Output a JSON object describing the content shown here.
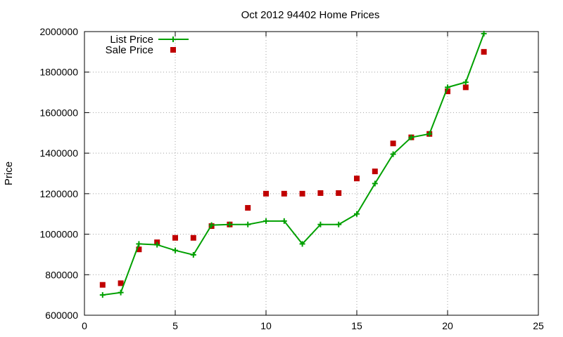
{
  "chart_data": {
    "type": "line",
    "title": "Oct 2012 94402 Home Prices",
    "xlabel": "",
    "ylabel": "Price",
    "xlim": [
      0,
      25
    ],
    "ylim": [
      600000,
      2000000
    ],
    "xticks": [
      0,
      5,
      10,
      15,
      20,
      25
    ],
    "yticks": [
      600000,
      800000,
      1000000,
      1200000,
      1400000,
      1600000,
      1800000,
      2000000
    ],
    "xtick_labels": [
      "0",
      "5",
      "10",
      "15",
      "20",
      "25"
    ],
    "ytick_labels": [
      "600000",
      "800000",
      "1000000",
      "1200000",
      "1400000",
      "1600000",
      "1800000",
      "2000000"
    ],
    "grid": true,
    "legend_position": "top-left",
    "series": [
      {
        "name": "List Price",
        "style": "linespoints",
        "marker": "plus",
        "color": "#00a000",
        "x": [
          1,
          2,
          3,
          4,
          5,
          6,
          7,
          8,
          9,
          10,
          11,
          12,
          13,
          14,
          15,
          16,
          17,
          18,
          19,
          20,
          21,
          22
        ],
        "values": [
          700000,
          712000,
          952000,
          948000,
          920000,
          898000,
          1045000,
          1048000,
          1048000,
          1065000,
          1065000,
          952000,
          1048000,
          1048000,
          1100000,
          1250000,
          1395000,
          1478000,
          1495000,
          1725000,
          1750000,
          1990000
        ]
      },
      {
        "name": "Sale Price",
        "style": "points",
        "marker": "square",
        "color": "#c00000",
        "x": [
          1,
          2,
          3,
          4,
          5,
          6,
          7,
          8,
          9,
          10,
          11,
          12,
          13,
          14,
          15,
          16,
          17,
          18,
          19,
          20,
          21,
          22
        ],
        "values": [
          750000,
          758000,
          925000,
          960000,
          982000,
          982000,
          1040000,
          1048000,
          1130000,
          1200000,
          1200000,
          1200000,
          1203000,
          1203000,
          1275000,
          1310000,
          1448000,
          1478000,
          1495000,
          1705000,
          1725000,
          1900000
        ]
      }
    ]
  }
}
